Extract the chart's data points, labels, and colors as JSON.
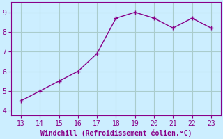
{
  "x": [
    13,
    14,
    15,
    16,
    17,
    18,
    19,
    20,
    21,
    22,
    23
  ],
  "y": [
    4.5,
    5.0,
    5.5,
    6.0,
    6.9,
    8.7,
    9.0,
    8.7,
    8.2,
    8.7,
    8.2
  ],
  "line_color": "#880088",
  "marker": "+",
  "marker_size": 4,
  "bg_color": "#cceeff",
  "grid_color": "#aacccc",
  "tick_color": "#880088",
  "label_color": "#880088",
  "xlabel": "Windchill (Refroidissement éolien,°C)",
  "xlim": [
    12.5,
    23.5
  ],
  "ylim": [
    3.75,
    9.5
  ],
  "xticks": [
    13,
    14,
    15,
    16,
    17,
    18,
    19,
    20,
    21,
    22,
    23
  ],
  "yticks": [
    4,
    5,
    6,
    7,
    8,
    9
  ],
  "xlabel_fontsize": 7,
  "tick_fontsize": 7,
  "linewidth": 1.0
}
